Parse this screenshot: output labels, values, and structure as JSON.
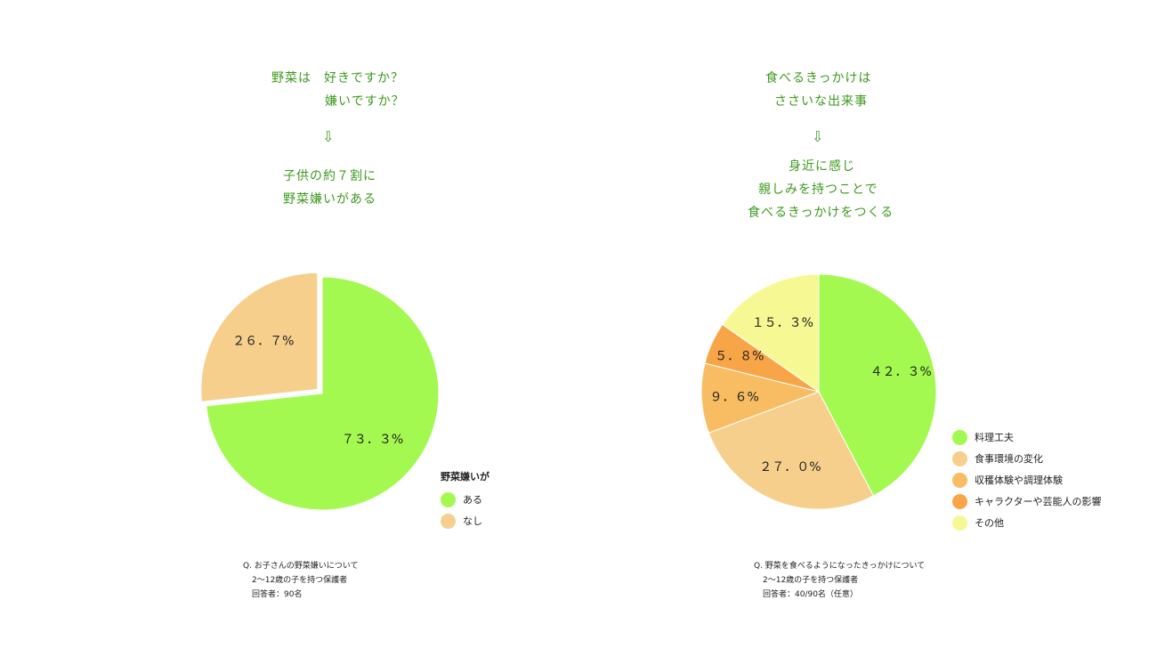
{
  "left": {
    "headline": {
      "line1_a": "野菜は",
      "line1_b": "好きですか？",
      "line2": "嫌いですか？",
      "arrow": "⇩",
      "line3": "子供の約７割に",
      "line4": "野菜嫌いがある"
    },
    "legend_title": "野菜嫌いが",
    "note": [
      "Q. お子さんの野菜嫌いについて",
      "2〜12歳の子を持つ保護者",
      "回答者：90名"
    ]
  },
  "right": {
    "headline": {
      "line1": "食べるきっかけは",
      "line2": "ささいな出来事",
      "arrow": "⇩",
      "line3": "身近に感じ",
      "line4": "親しみを持つことで",
      "line5": "食べるきっかけをつくる"
    },
    "note": [
      "Q. 野菜を食べるようになったきっかけについて",
      "2〜12歳の子を持つ保護者",
      "回答者：40/90名（任意）"
    ]
  },
  "chart_data": [
    {
      "type": "pie",
      "title": "",
      "legend_title": "野菜嫌いが",
      "legend_position": "bottom-right",
      "slices": [
        {
          "label": "ある",
          "value": 73.3,
          "display": "７３．３%",
          "color": "#a3f94f"
        },
        {
          "label": "なし",
          "value": 26.7,
          "display": "２６．７%",
          "color": "#f6cf8d",
          "exploded": true
        }
      ]
    },
    {
      "type": "pie",
      "title": "",
      "legend_position": "right",
      "slices": [
        {
          "label": "料理工夫",
          "value": 42.3,
          "display": "４２．３%",
          "color": "#a3f94f"
        },
        {
          "label": "食事環境の変化",
          "value": 27.0,
          "display": "２７．０%",
          "color": "#f6cf8d"
        },
        {
          "label": "収穫体験や調理体験",
          "value": 9.6,
          "display": "９．６%",
          "color": "#f8bd63"
        },
        {
          "label": "キャラクターや芸能人の影響",
          "value": 5.8,
          "display": "５．８%",
          "color": "#f8a548"
        },
        {
          "label": "その他",
          "value": 15.3,
          "display": "１５．３%",
          "color": "#f6f993"
        }
      ]
    }
  ]
}
